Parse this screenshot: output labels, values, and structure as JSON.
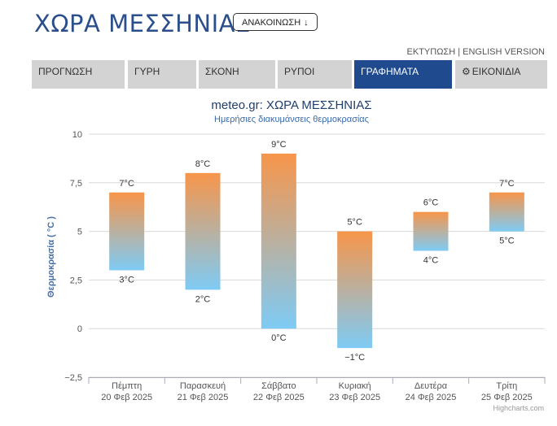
{
  "header": {
    "title": "ΧΩΡΑ ΜΕΣΣΗΝΙΑΣ",
    "announce_label": "ΑΝΑΚΟΙΝΩΣΗ",
    "announce_icon": "arrow-down-icon",
    "print_label": "ΕΚΤΥΠΩΣΗ",
    "separator": " | ",
    "english_label": "ENGLISH VERSION"
  },
  "tabs": [
    {
      "label": "ΠΡΟΓΝΩΣΗ",
      "active": false
    },
    {
      "label": "ΓΥΡΗ",
      "active": false
    },
    {
      "label": "ΣΚΟΝΗ",
      "active": false
    },
    {
      "label": "ΡΥΠΟΙ",
      "active": false
    },
    {
      "label": "ΓΡΑΦΗΜΑΤΑ",
      "active": true
    },
    {
      "label": "ΕΙΚΟΝΙΔΙΑ",
      "active": false,
      "icon": "gear-icon"
    }
  ],
  "colors": {
    "accent": "#1f4a8e",
    "tab_bg": "#d3d3d3",
    "bar_top": "#f7954a",
    "bar_bottom": "#7ecbf5"
  },
  "chart_data": {
    "type": "columnrange",
    "title": "meteo.gr: ΧΩΡΑ ΜΕΣΣΗΝΙΑΣ",
    "subtitle": "Ημερήσιες διακυμάνσεις θερμοκρασίας",
    "ylabel": "Θερμοκρασία ( °C )",
    "ylim": [
      -2.5,
      10
    ],
    "yticks": [
      "10",
      "7,5",
      "5",
      "2,5",
      "0",
      "−2,5"
    ],
    "ytick_values": [
      10,
      7.5,
      5,
      2.5,
      0,
      -2.5
    ],
    "categories": [
      "Πέμπτη",
      "Παρασκευή",
      "Σάββατο",
      "Κυριακή",
      "Δευτέρα",
      "Τρίτη"
    ],
    "dates": [
      "20 Φεβ 2025",
      "21 Φεβ 2025",
      "22 Φεβ 2025",
      "23 Φεβ 2025",
      "24 Φεβ 2025",
      "25 Φεβ 2025"
    ],
    "low": [
      3,
      2,
      0,
      -1,
      4,
      5
    ],
    "high": [
      7,
      8,
      9,
      5,
      6,
      7
    ],
    "low_labels": [
      "3°C",
      "2°C",
      "0°C",
      "−1°C",
      "4°C",
      "5°C"
    ],
    "high_labels": [
      "7°C",
      "8°C",
      "9°C",
      "5°C",
      "6°C",
      "7°C"
    ],
    "credits": "Highcharts.com",
    "grid": true,
    "legend": "none"
  }
}
